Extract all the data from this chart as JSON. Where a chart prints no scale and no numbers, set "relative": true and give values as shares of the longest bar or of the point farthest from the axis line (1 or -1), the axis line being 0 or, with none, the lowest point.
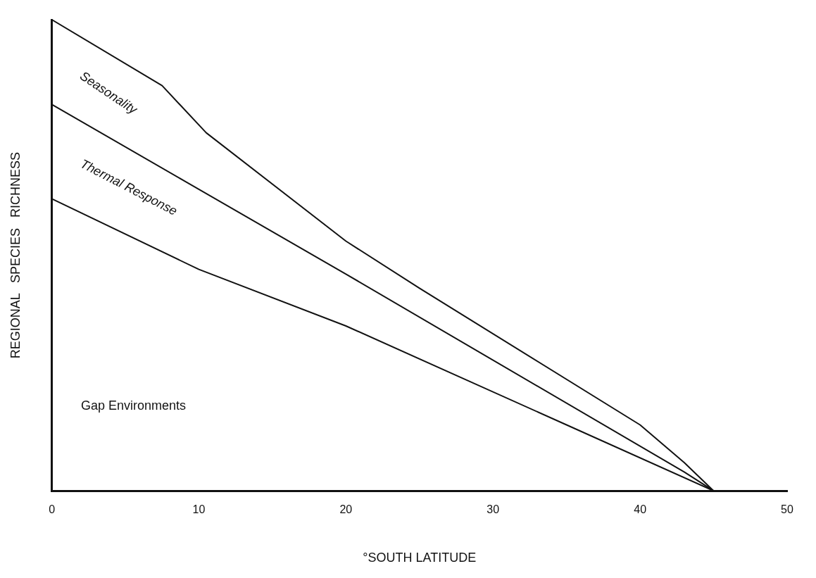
{
  "chart_data": {
    "type": "line",
    "relative": true,
    "xlabel": "°SOUTH LATITUDE",
    "ylabel": "REGIONAL   SPECIES   RICHNESS",
    "xlim": [
      0,
      50
    ],
    "xticks": [
      0,
      10,
      20,
      30,
      40,
      50
    ],
    "grid": false,
    "legend": false,
    "marker": "none",
    "line_style": "solid",
    "series": [
      {
        "color": "#111111",
        "x": [
          0,
          7.5,
          10.5,
          20,
          25,
          40,
          43,
          45
        ],
        "values": [
          1.0,
          0.86,
          0.76,
          0.53,
          0.43,
          0.14,
          0.06,
          0
        ]
      },
      {
        "color": "#111111",
        "x": [
          0,
          20,
          43,
          45
        ],
        "values": [
          0.82,
          0.46,
          0.04,
          0
        ]
      },
      {
        "color": "#111111",
        "x": [
          0,
          10,
          20,
          35,
          45
        ],
        "values": [
          0.62,
          0.47,
          0.35,
          0.14,
          0
        ]
      }
    ],
    "annotations": [
      "Seasonality",
      "Thermal Response",
      "Gap Environments"
    ]
  }
}
